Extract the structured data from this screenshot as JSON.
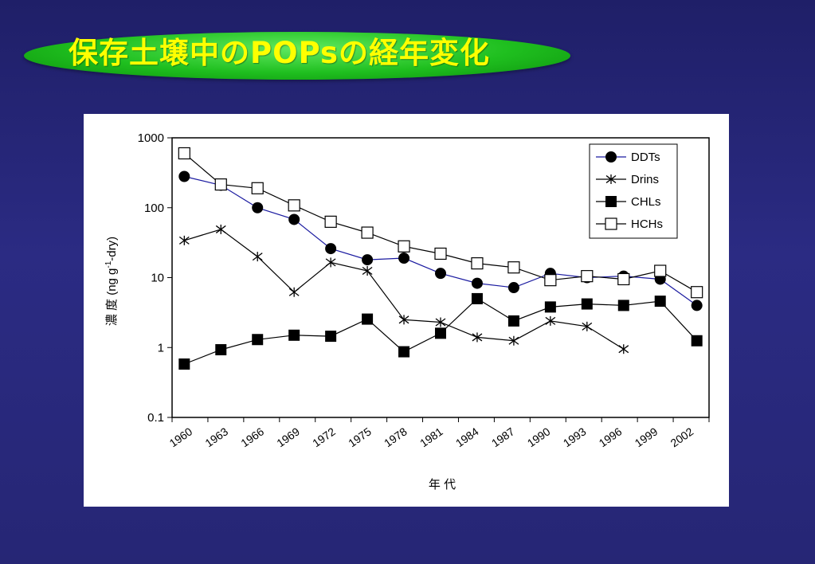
{
  "slide": {
    "title": "保存土壌中のPOPsの経年変化"
  },
  "colors": {
    "background": "#262675",
    "title_text": "#ffff00",
    "title_ellipse": "#1fbf1f",
    "ddts_line": "#1a1aa0",
    "other_lines": "#000000"
  },
  "chart_data": {
    "type": "line",
    "scale": "log",
    "ylim": [
      0.1,
      1000
    ],
    "y_ticks": [
      "1000",
      "100",
      "10",
      "1",
      "0.1"
    ],
    "x_ticks": [
      "1960",
      "1963",
      "1966",
      "1969",
      "1972",
      "1975",
      "1978",
      "1981",
      "1984",
      "1987",
      "1990",
      "1993",
      "1996",
      "1999",
      "2002"
    ],
    "xlabel": "年 代",
    "ylabel": "濃 度 (ng g-1-dry)",
    "legend_position": "top-right",
    "series": [
      {
        "name": "DDTs",
        "marker": "filled-circle",
        "color": "#1a1aa0",
        "points": [
          [
            1961,
            280
          ],
          [
            1964,
            210
          ],
          [
            1967,
            100
          ],
          [
            1970,
            68
          ],
          [
            1973,
            26
          ],
          [
            1976,
            18
          ],
          [
            1979,
            19
          ],
          [
            1982,
            11.5
          ],
          [
            1985,
            8.3
          ],
          [
            1988,
            7.2
          ],
          [
            1991,
            11.5
          ],
          [
            1994,
            10
          ],
          [
            1997,
            10.5
          ],
          [
            2000,
            9.5
          ],
          [
            2003,
            4
          ]
        ]
      },
      {
        "name": "Drins",
        "marker": "asterisk",
        "color": "#000000",
        "points": [
          [
            1961,
            34
          ],
          [
            1964,
            49
          ],
          [
            1967,
            20
          ],
          [
            1970,
            6.2
          ],
          [
            1973,
            16.5
          ],
          [
            1976,
            12.5
          ],
          [
            1979,
            2.5
          ],
          [
            1982,
            2.3
          ],
          [
            1985,
            1.4
          ],
          [
            1988,
            1.25
          ],
          [
            1991,
            2.4
          ],
          [
            1994,
            2
          ],
          [
            1997,
            0.95
          ]
        ]
      },
      {
        "name": "CHLs",
        "marker": "filled-square",
        "color": "#000000",
        "points": [
          [
            1961,
            0.58
          ],
          [
            1964,
            0.93
          ],
          [
            1967,
            1.3
          ],
          [
            1970,
            1.5
          ],
          [
            1973,
            1.45
          ],
          [
            1976,
            2.55
          ],
          [
            1979,
            0.87
          ],
          [
            1982,
            1.6
          ],
          [
            1985,
            5
          ],
          [
            1988,
            2.4
          ],
          [
            1991,
            3.8
          ],
          [
            1994,
            4.2
          ],
          [
            1997,
            4
          ],
          [
            2000,
            4.6
          ],
          [
            2003,
            1.25
          ]
        ]
      },
      {
        "name": "HCHs",
        "marker": "open-square",
        "color": "#000000",
        "points": [
          [
            1961,
            600
          ],
          [
            1964,
            215
          ],
          [
            1967,
            190
          ],
          [
            1970,
            108
          ],
          [
            1973,
            63
          ],
          [
            1976,
            44
          ],
          [
            1979,
            28
          ],
          [
            1982,
            22
          ],
          [
            1985,
            16
          ],
          [
            1988,
            14
          ],
          [
            1991,
            9.2
          ],
          [
            1994,
            10.5
          ],
          [
            1997,
            9.5
          ],
          [
            2000,
            12.5
          ],
          [
            2003,
            6.2
          ]
        ]
      }
    ]
  }
}
